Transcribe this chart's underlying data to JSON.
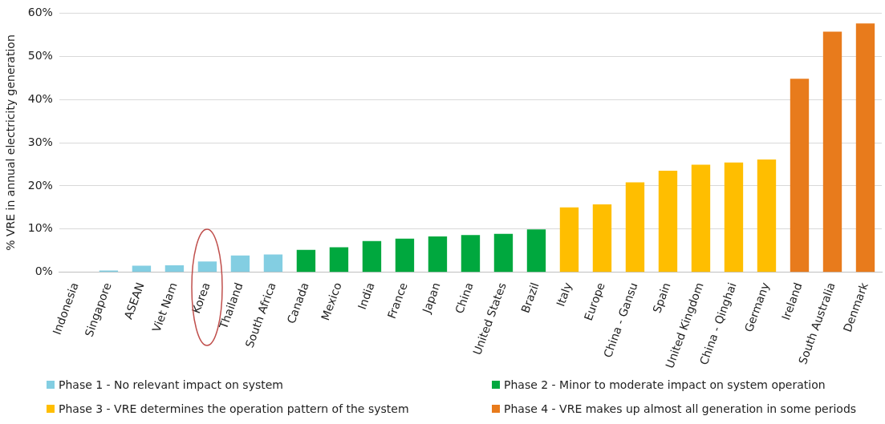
{
  "chart_data": {
    "type": "bar",
    "ylabel": "% VRE in annual electricity generation",
    "categories": [
      "Indonesia",
      "Singapore",
      "ASEAN",
      "Viet Nam",
      "Korea",
      "Thailand",
      "South Africa",
      "Canada",
      "Mexico",
      "India",
      "France",
      "Japan",
      "China",
      "United States",
      "Brazil",
      "Italy",
      "Europe",
      "China - Gansu",
      "Spain",
      "United Kingdom",
      "China - Qinghai",
      "Germany",
      "Ireland",
      "South Australia",
      "Denmark"
    ],
    "series": [
      {
        "name": "Phase 1 - No relevant impact on system",
        "color": "#83cee2",
        "values": [
          0,
          0.4,
          1.5,
          1.6,
          2.5,
          3.9,
          4.1,
          null,
          null,
          null,
          null,
          null,
          null,
          null,
          null,
          null,
          null,
          null,
          null,
          null,
          null,
          null,
          null,
          null,
          null
        ]
      },
      {
        "name": "Phase 2 - Minor to moderate impact on system operation",
        "color": "#00a83e",
        "values": [
          null,
          null,
          null,
          null,
          null,
          null,
          null,
          5.2,
          5.8,
          7.2,
          7.8,
          8.3,
          8.6,
          8.9,
          9.9,
          null,
          null,
          null,
          null,
          null,
          null,
          null,
          null,
          null,
          null
        ]
      },
      {
        "name": "Phase 3 - VRE determines the operation pattern of the system",
        "color": "#ffbe00",
        "values": [
          null,
          null,
          null,
          null,
          null,
          null,
          null,
          null,
          null,
          null,
          null,
          null,
          null,
          null,
          null,
          15.0,
          15.7,
          20.8,
          23.5,
          24.9,
          25.4,
          26.1,
          null,
          null,
          null
        ]
      },
      {
        "name": "Phase 4 - VRE makes up almost all generation in some periods",
        "color": "#e87b1c",
        "values": [
          null,
          null,
          null,
          null,
          null,
          null,
          null,
          null,
          null,
          null,
          null,
          null,
          null,
          null,
          null,
          null,
          null,
          null,
          null,
          null,
          null,
          null,
          44.8,
          55.7,
          57.6
        ]
      }
    ],
    "ylim": [
      0,
      60
    ],
    "yticks": [
      {
        "value": 0,
        "label": "0%"
      },
      {
        "value": 10,
        "label": "10%"
      },
      {
        "value": 20,
        "label": "20%"
      },
      {
        "value": 30,
        "label": "30%"
      },
      {
        "value": 40,
        "label": "40%"
      },
      {
        "value": 50,
        "label": "50%"
      },
      {
        "value": 60,
        "label": "60%"
      }
    ],
    "grid": "y",
    "legend": "bottom"
  }
}
